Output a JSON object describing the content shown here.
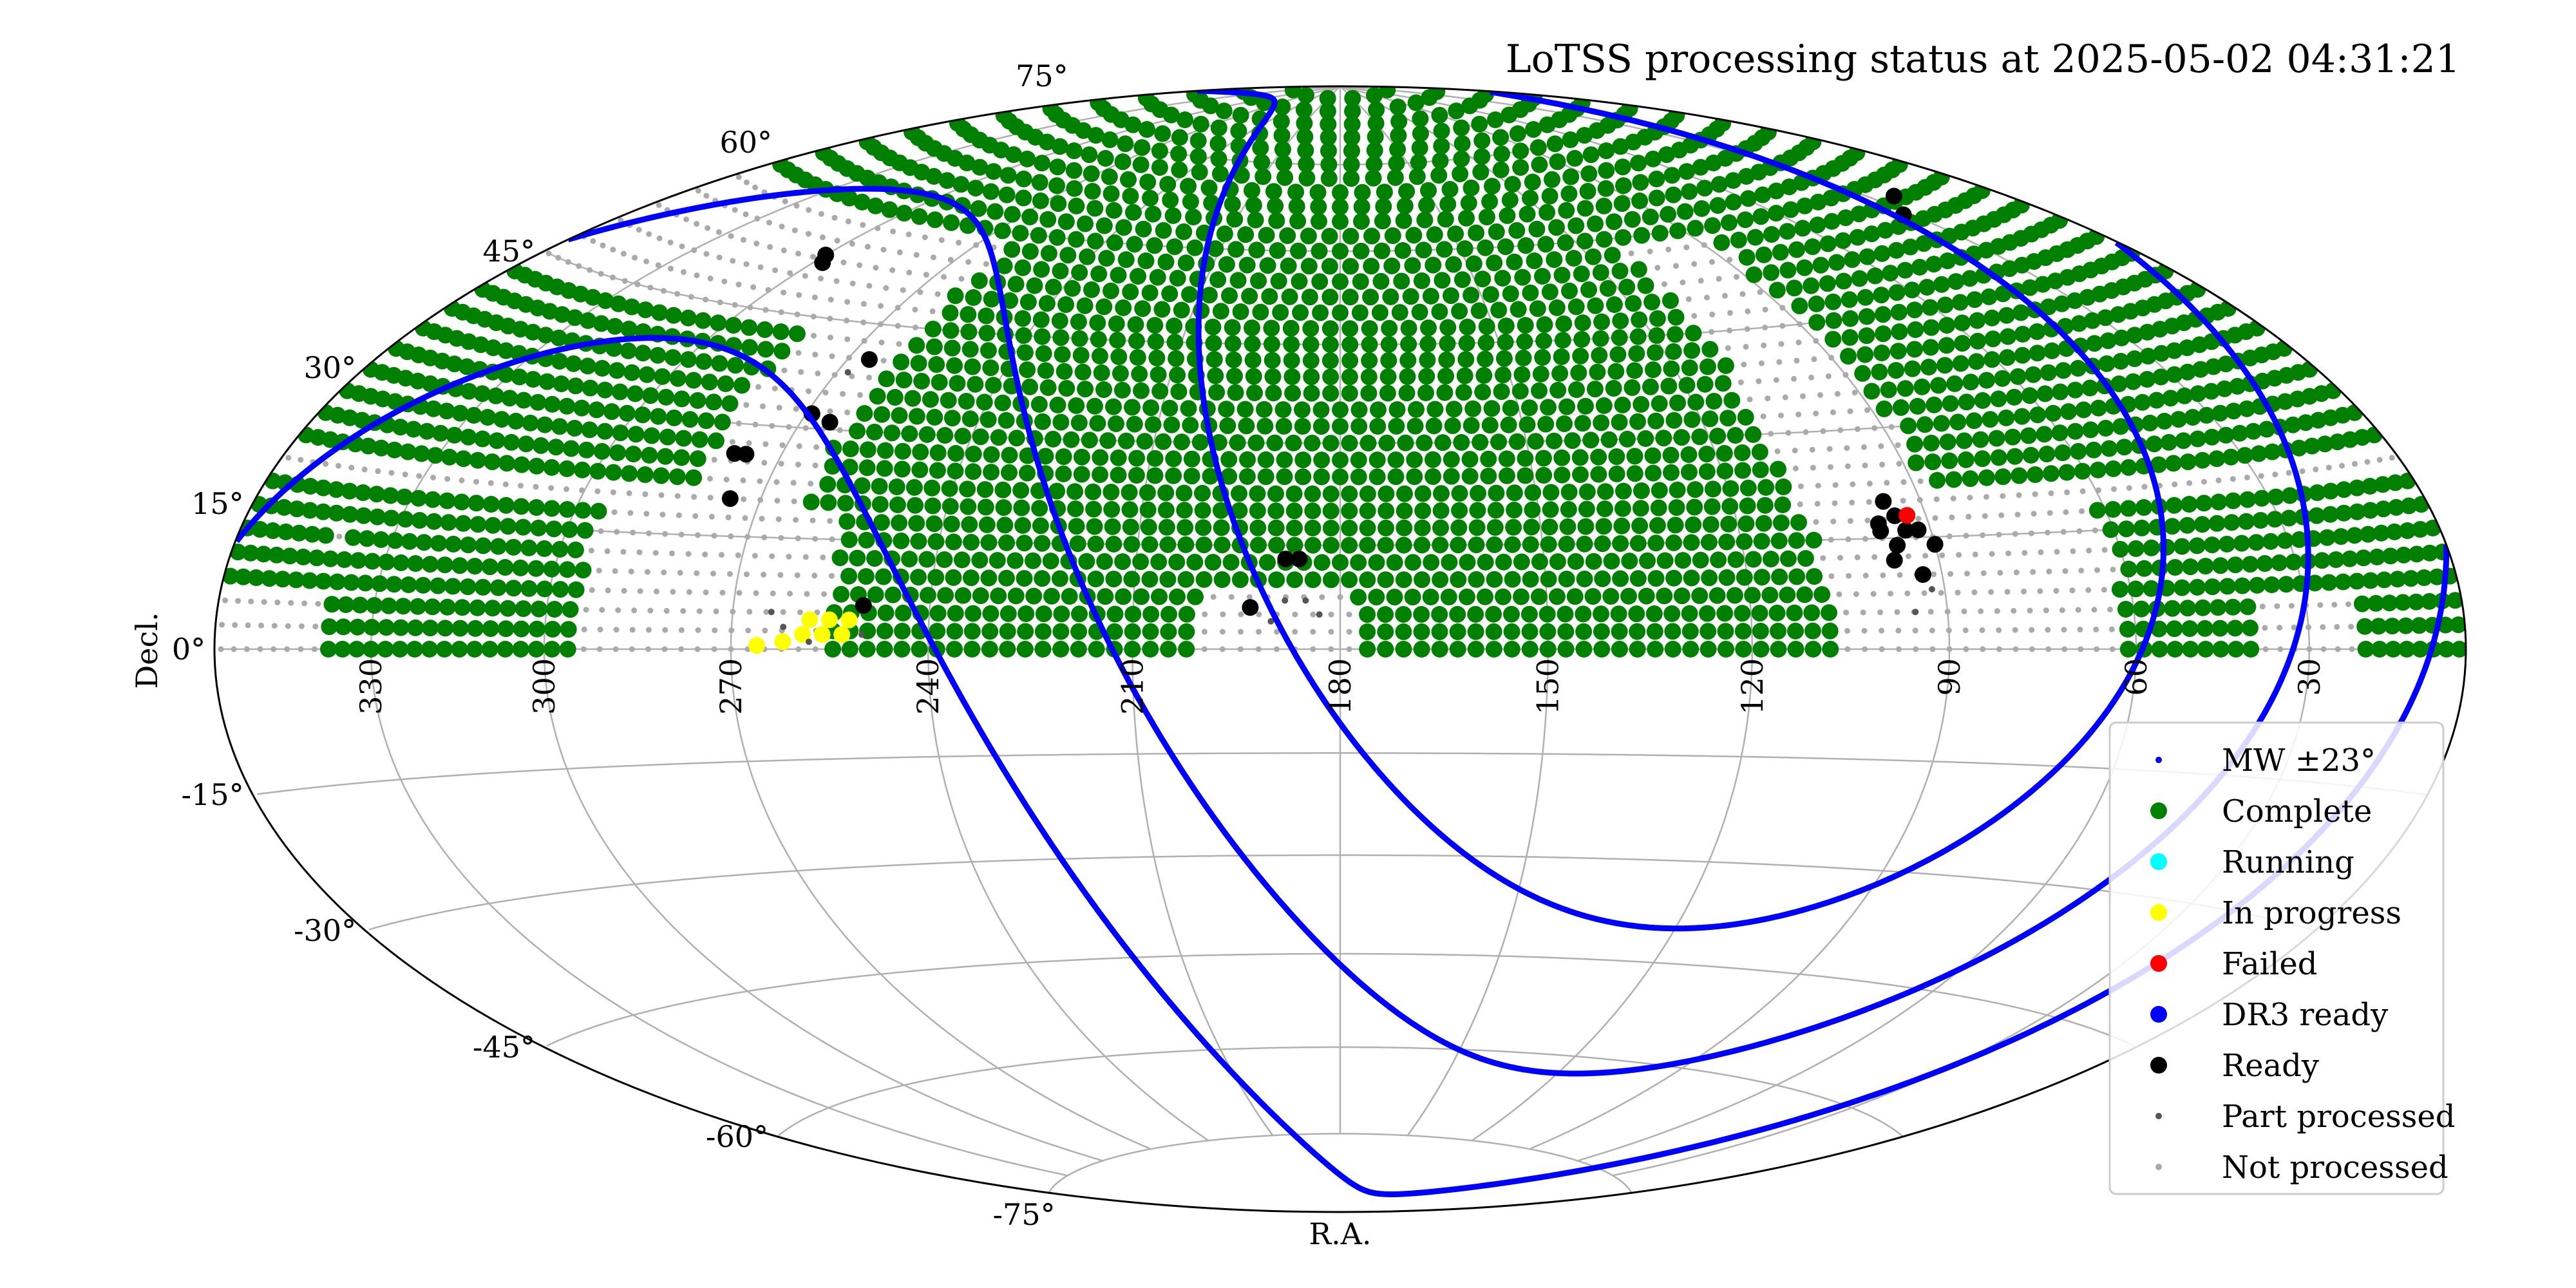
{
  "chart_data": {
    "type": "scatter",
    "projection": "hammer-aitoff",
    "title": "LoTSS processing status at 2025-05-02 04:31:21",
    "xlabel": "R.A.",
    "ylabel": "Decl.",
    "ra_ticks": [
      "330",
      "300",
      "270",
      "240",
      "210",
      "180",
      "150",
      "120",
      "90",
      "60",
      "30"
    ],
    "dec_ticks": [
      "75°",
      "60°",
      "45°",
      "30°",
      "15°",
      "0°",
      "-15°",
      "-30°",
      "-45°",
      "-60°",
      "-75°"
    ],
    "grid": true,
    "legend_position": "lower right",
    "legend": [
      {
        "label": "MW ±23°",
        "color": "#0000ff",
        "marker": "small"
      },
      {
        "label": "Complete",
        "color": "#008000",
        "marker": "large"
      },
      {
        "label": "Running",
        "color": "#00ffff",
        "marker": "large"
      },
      {
        "label": "In progress",
        "color": "#ffff00",
        "marker": "large"
      },
      {
        "label": "Failed",
        "color": "#ff0000",
        "marker": "large"
      },
      {
        "label": "DR3 ready",
        "color": "#0000ff",
        "marker": "large"
      },
      {
        "label": "Ready",
        "color": "#000000",
        "marker": "large"
      },
      {
        "label": "Part processed",
        "color": "#555555",
        "marker": "small"
      },
      {
        "label": "Not processed",
        "color": "#aaaaaa",
        "marker": "small"
      }
    ],
    "galactic_plane_band_b_deg": [
      -23,
      23
    ],
    "series": [
      {
        "name": "Ready",
        "color": "#000000",
        "points": [
          [
            265,
            31
          ],
          [
            269,
            32
          ],
          [
            276,
            26
          ],
          [
            278,
            26
          ],
          [
            266,
            40
          ],
          [
            275,
            20
          ],
          [
            298,
            52
          ],
          [
            300,
            53
          ],
          [
            188,
            13
          ],
          [
            186,
            13
          ],
          [
            193,
            6
          ],
          [
            250,
            6
          ],
          [
            95,
            18
          ],
          [
            98,
            16
          ],
          [
            94,
            16
          ],
          [
            92,
            16
          ],
          [
            90,
            14
          ],
          [
            96,
            14
          ],
          [
            97,
            12
          ],
          [
            93,
            10
          ],
          [
            98,
            17
          ],
          [
            96,
            20
          ],
          [
            24,
            58
          ],
          [
            32,
            56
          ]
        ]
      },
      {
        "name": "Failed",
        "color": "#ff0000",
        "points": [
          [
            93,
            18
          ]
        ]
      },
      {
        "name": "In progress",
        "color": "#ffff00",
        "points": [
          [
            252,
            4
          ],
          [
            255,
            4
          ],
          [
            258,
            4
          ],
          [
            253,
            2
          ],
          [
            256,
            2
          ],
          [
            259,
            2
          ],
          [
            262,
            1
          ],
          [
            266,
            0.5
          ]
        ]
      },
      {
        "name": "Part processed",
        "color": "#555555",
        "points": [
          [
            188,
            7
          ],
          [
            185,
            7
          ],
          [
            183,
            5
          ],
          [
            190,
            4
          ],
          [
            258,
            1
          ],
          [
            262,
            3
          ],
          [
            264,
            5
          ],
          [
            250,
            2
          ],
          [
            95,
            5
          ],
          [
            92,
            8
          ],
          [
            268,
            38
          ]
        ]
      }
    ]
  }
}
